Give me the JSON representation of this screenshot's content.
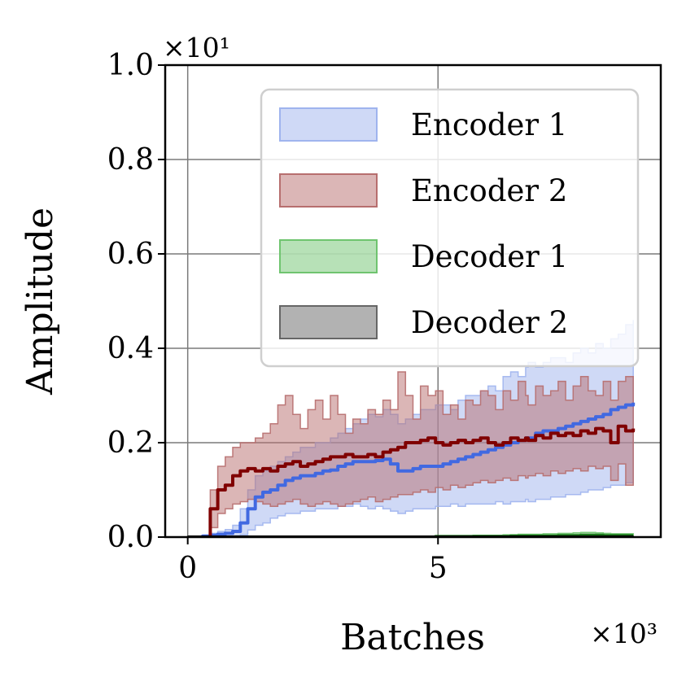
{
  "chart_data": {
    "type": "line",
    "xlabel": "Batches",
    "ylabel": "Amplitude",
    "x_multiplier_label": "×10³",
    "y_multiplier_label": "×10¹",
    "xlim": [
      -0.45,
      9.45
    ],
    "ylim": [
      0.0,
      1.0
    ],
    "x_ticks": [
      0,
      5
    ],
    "x_tick_labels": [
      "0",
      "5"
    ],
    "y_ticks": [
      0.0,
      0.2,
      0.4,
      0.6,
      0.8,
      1.0
    ],
    "y_tick_labels": [
      "0.0",
      "0.2",
      "0.4",
      "0.6",
      "0.8",
      "1.0"
    ],
    "grid": true,
    "legend_position": "top-right",
    "x": [
      0.0,
      0.15,
      0.3,
      0.45,
      0.6,
      0.75,
      0.9,
      1.05,
      1.2,
      1.35,
      1.5,
      1.65,
      1.8,
      1.95,
      2.1,
      2.25,
      2.4,
      2.55,
      2.7,
      2.85,
      3.0,
      3.15,
      3.3,
      3.45,
      3.6,
      3.75,
      3.9,
      4.05,
      4.2,
      4.35,
      4.5,
      4.65,
      4.8,
      4.95,
      5.1,
      5.25,
      5.4,
      5.55,
      5.7,
      5.85,
      6.0,
      6.15,
      6.3,
      6.45,
      6.6,
      6.75,
      6.8,
      6.95,
      7.1,
      7.25,
      7.4,
      7.55,
      7.7,
      7.85,
      8.0,
      8.15,
      8.3,
      8.45,
      8.6,
      8.75,
      8.9
    ],
    "series": [
      {
        "name": "Encoder 1",
        "color": "#4169e1",
        "fill_color": "#9fb4ee",
        "mean": [
          0.0,
          0.0,
          0.002,
          0.004,
          0.006,
          0.008,
          0.012,
          0.03,
          0.06,
          0.085,
          0.095,
          0.1,
          0.11,
          0.12,
          0.125,
          0.13,
          0.13,
          0.135,
          0.14,
          0.142,
          0.15,
          0.155,
          0.16,
          0.16,
          0.16,
          0.162,
          0.165,
          0.155,
          0.14,
          0.14,
          0.145,
          0.15,
          0.15,
          0.15,
          0.155,
          0.16,
          0.165,
          0.17,
          0.175,
          0.18,
          0.185,
          0.19,
          0.195,
          0.2,
          0.205,
          0.21,
          0.21,
          0.22,
          0.225,
          0.225,
          0.23,
          0.235,
          0.24,
          0.245,
          0.25,
          0.255,
          0.26,
          0.27,
          0.275,
          0.28,
          0.285
        ],
        "upper": [
          0.0,
          0.0,
          0.004,
          0.008,
          0.012,
          0.016,
          0.025,
          0.06,
          0.1,
          0.13,
          0.14,
          0.15,
          0.16,
          0.17,
          0.18,
          0.19,
          0.19,
          0.2,
          0.2,
          0.21,
          0.22,
          0.23,
          0.24,
          0.25,
          0.26,
          0.255,
          0.27,
          0.26,
          0.24,
          0.25,
          0.26,
          0.27,
          0.27,
          0.28,
          0.28,
          0.27,
          0.29,
          0.3,
          0.3,
          0.31,
          0.32,
          0.31,
          0.34,
          0.35,
          0.34,
          0.36,
          0.37,
          0.36,
          0.37,
          0.38,
          0.38,
          0.37,
          0.39,
          0.4,
          0.39,
          0.41,
          0.4,
          0.42,
          0.43,
          0.45,
          0.46
        ],
        "lower": [
          0.0,
          0.0,
          0.0,
          0.0,
          0.0,
          0.0,
          0.0,
          0.005,
          0.015,
          0.025,
          0.03,
          0.04,
          0.045,
          0.05,
          0.05,
          0.055,
          0.055,
          0.06,
          0.06,
          0.06,
          0.065,
          0.065,
          0.07,
          0.065,
          0.06,
          0.065,
          0.06,
          0.055,
          0.05,
          0.055,
          0.06,
          0.06,
          0.06,
          0.065,
          0.065,
          0.07,
          0.065,
          0.07,
          0.07,
          0.07,
          0.07,
          0.075,
          0.07,
          0.075,
          0.075,
          0.08,
          0.075,
          0.08,
          0.08,
          0.085,
          0.085,
          0.09,
          0.09,
          0.095,
          0.1,
          0.1,
          0.105,
          0.11,
          0.11,
          0.115,
          0.12
        ]
      },
      {
        "name": "Encoder 2",
        "color": "#800000",
        "fill_color": "#b76e6e",
        "mean": [
          0.0,
          0.0,
          0.0,
          0.06,
          0.1,
          0.11,
          0.13,
          0.14,
          0.145,
          0.14,
          0.145,
          0.14,
          0.15,
          0.155,
          0.16,
          0.15,
          0.155,
          0.16,
          0.165,
          0.17,
          0.17,
          0.175,
          0.17,
          0.17,
          0.175,
          0.17,
          0.18,
          0.185,
          0.19,
          0.2,
          0.2,
          0.205,
          0.21,
          0.2,
          0.195,
          0.2,
          0.205,
          0.2,
          0.205,
          0.21,
          0.2,
          0.195,
          0.2,
          0.21,
          0.205,
          0.21,
          0.205,
          0.215,
          0.21,
          0.22,
          0.215,
          0.22,
          0.215,
          0.225,
          0.22,
          0.23,
          0.225,
          0.2,
          0.235,
          0.225,
          0.23
        ],
        "upper": [
          0.0,
          0.0,
          0.0,
          0.1,
          0.15,
          0.17,
          0.19,
          0.2,
          0.2,
          0.21,
          0.22,
          0.24,
          0.28,
          0.3,
          0.26,
          0.23,
          0.27,
          0.29,
          0.25,
          0.3,
          0.26,
          0.22,
          0.25,
          0.24,
          0.27,
          0.26,
          0.29,
          0.27,
          0.35,
          0.3,
          0.25,
          0.32,
          0.3,
          0.31,
          0.26,
          0.28,
          0.25,
          0.29,
          0.28,
          0.31,
          0.3,
          0.27,
          0.31,
          0.29,
          0.33,
          0.3,
          0.28,
          0.32,
          0.3,
          0.31,
          0.33,
          0.29,
          0.32,
          0.34,
          0.31,
          0.3,
          0.33,
          0.29,
          0.33,
          0.34,
          0.34
        ],
        "lower": [
          0.0,
          0.0,
          0.0,
          0.02,
          0.05,
          0.06,
          0.07,
          0.075,
          0.08,
          0.075,
          0.07,
          0.065,
          0.07,
          0.075,
          0.08,
          0.07,
          0.065,
          0.07,
          0.075,
          0.07,
          0.065,
          0.07,
          0.075,
          0.08,
          0.085,
          0.075,
          0.08,
          0.085,
          0.09,
          0.09,
          0.095,
          0.1,
          0.095,
          0.105,
          0.1,
          0.11,
          0.105,
          0.11,
          0.115,
          0.12,
          0.115,
          0.12,
          0.125,
          0.12,
          0.13,
          0.125,
          0.13,
          0.135,
          0.13,
          0.14,
          0.135,
          0.14,
          0.145,
          0.14,
          0.15,
          0.145,
          0.15,
          0.12,
          0.155,
          0.11,
          0.11
        ]
      },
      {
        "name": "Decoder 1",
        "color": "#1b7a1b",
        "fill_color": "#6fc46f",
        "mean": [
          0.0,
          0.0,
          0.0,
          0.0,
          0.0,
          0.0,
          0.0,
          0.0,
          0.0,
          0.0,
          0.0,
          0.0,
          0.0,
          0.0,
          0.0,
          0.0,
          0.0,
          0.0,
          0.0,
          0.0,
          0.0,
          0.0,
          0.0,
          0.0,
          0.0,
          0.0,
          0.0,
          0.0,
          0.0,
          0.0,
          0.0,
          0.0,
          0.0,
          0.001,
          0.001,
          0.001,
          0.001,
          0.001,
          0.001,
          0.001,
          0.001,
          0.001,
          0.001,
          0.002,
          0.002,
          0.002,
          0.002,
          0.002,
          0.002,
          0.002,
          0.003,
          0.003,
          0.003,
          0.004,
          0.004,
          0.004,
          0.003,
          0.003,
          0.003,
          0.003,
          0.003
        ],
        "upper": [
          0.0,
          0.0,
          0.0,
          0.0,
          0.0,
          0.0,
          0.0,
          0.0,
          0.0,
          0.0,
          0.0,
          0.0,
          0.0,
          0.0,
          0.0,
          0.0,
          0.0,
          0.0,
          0.0,
          0.0,
          0.0,
          0.0,
          0.0,
          0.0,
          0.0,
          0.0,
          0.0,
          0.0,
          0.0,
          0.0,
          0.001,
          0.001,
          0.002,
          0.003,
          0.003,
          0.003,
          0.003,
          0.003,
          0.004,
          0.004,
          0.004,
          0.004,
          0.005,
          0.005,
          0.006,
          0.006,
          0.006,
          0.006,
          0.007,
          0.007,
          0.008,
          0.008,
          0.009,
          0.01,
          0.01,
          0.009,
          0.008,
          0.007,
          0.007,
          0.007,
          0.007
        ],
        "lower": [
          0.0,
          0.0,
          0.0,
          0.0,
          0.0,
          0.0,
          0.0,
          0.0,
          0.0,
          0.0,
          0.0,
          0.0,
          0.0,
          0.0,
          0.0,
          0.0,
          0.0,
          0.0,
          0.0,
          0.0,
          0.0,
          0.0,
          0.0,
          0.0,
          0.0,
          0.0,
          0.0,
          0.0,
          0.0,
          0.0,
          0.0,
          0.0,
          0.0,
          0.0,
          0.0,
          0.0,
          0.0,
          0.0,
          0.0,
          0.0,
          0.0,
          0.0,
          0.0,
          0.0,
          0.0,
          0.0,
          0.0,
          0.0,
          0.0,
          0.0,
          0.0,
          0.0,
          0.0,
          0.0,
          0.0,
          0.0,
          0.0,
          0.0,
          0.0,
          0.0,
          0.0
        ]
      },
      {
        "name": "Decoder 2",
        "color": "#000000",
        "fill_color": "#666666",
        "mean": [
          0.0,
          0.0,
          0.0,
          0.0,
          0.0,
          0.0,
          0.0,
          0.0,
          0.0,
          0.0,
          0.0,
          0.0,
          0.0,
          0.0,
          0.0,
          0.0,
          0.0,
          0.0,
          0.0,
          0.0,
          0.0,
          0.0,
          0.0,
          0.0,
          0.0,
          0.0,
          0.0,
          0.0,
          0.0,
          0.0,
          0.0,
          0.0,
          0.0,
          0.0,
          0.0,
          0.0,
          0.0,
          0.0,
          0.0,
          0.0,
          0.0,
          0.0,
          0.0,
          0.0,
          0.0,
          0.0,
          0.0,
          0.0,
          0.0,
          0.0,
          0.0,
          0.0,
          0.0,
          0.0,
          0.0,
          0.0,
          0.0,
          0.0,
          0.0,
          0.0,
          0.0
        ],
        "upper": [
          0.002,
          0.002,
          0.002,
          0.002,
          0.002,
          0.002,
          0.002,
          0.002,
          0.002,
          0.002,
          0.002,
          0.002,
          0.002,
          0.002,
          0.002,
          0.002,
          0.002,
          0.002,
          0.002,
          0.002,
          0.002,
          0.002,
          0.002,
          0.002,
          0.002,
          0.002,
          0.002,
          0.002,
          0.002,
          0.002,
          0.002,
          0.002,
          0.002,
          0.002,
          0.002,
          0.002,
          0.002,
          0.002,
          0.002,
          0.002,
          0.002,
          0.002,
          0.002,
          0.002,
          0.002,
          0.002,
          0.002,
          0.002,
          0.002,
          0.002,
          0.002,
          0.002,
          0.002,
          0.002,
          0.002,
          0.002,
          0.002,
          0.002,
          0.002,
          0.002,
          0.002
        ],
        "lower": [
          0.0,
          0.0,
          0.0,
          0.0,
          0.0,
          0.0,
          0.0,
          0.0,
          0.0,
          0.0,
          0.0,
          0.0,
          0.0,
          0.0,
          0.0,
          0.0,
          0.0,
          0.0,
          0.0,
          0.0,
          0.0,
          0.0,
          0.0,
          0.0,
          0.0,
          0.0,
          0.0,
          0.0,
          0.0,
          0.0,
          0.0,
          0.0,
          0.0,
          0.0,
          0.0,
          0.0,
          0.0,
          0.0,
          0.0,
          0.0,
          0.0,
          0.0,
          0.0,
          0.0,
          0.0,
          0.0,
          0.0,
          0.0,
          0.0,
          0.0,
          0.0,
          0.0,
          0.0,
          0.0,
          0.0,
          0.0,
          0.0,
          0.0,
          0.0,
          0.0,
          0.0
        ]
      }
    ]
  }
}
